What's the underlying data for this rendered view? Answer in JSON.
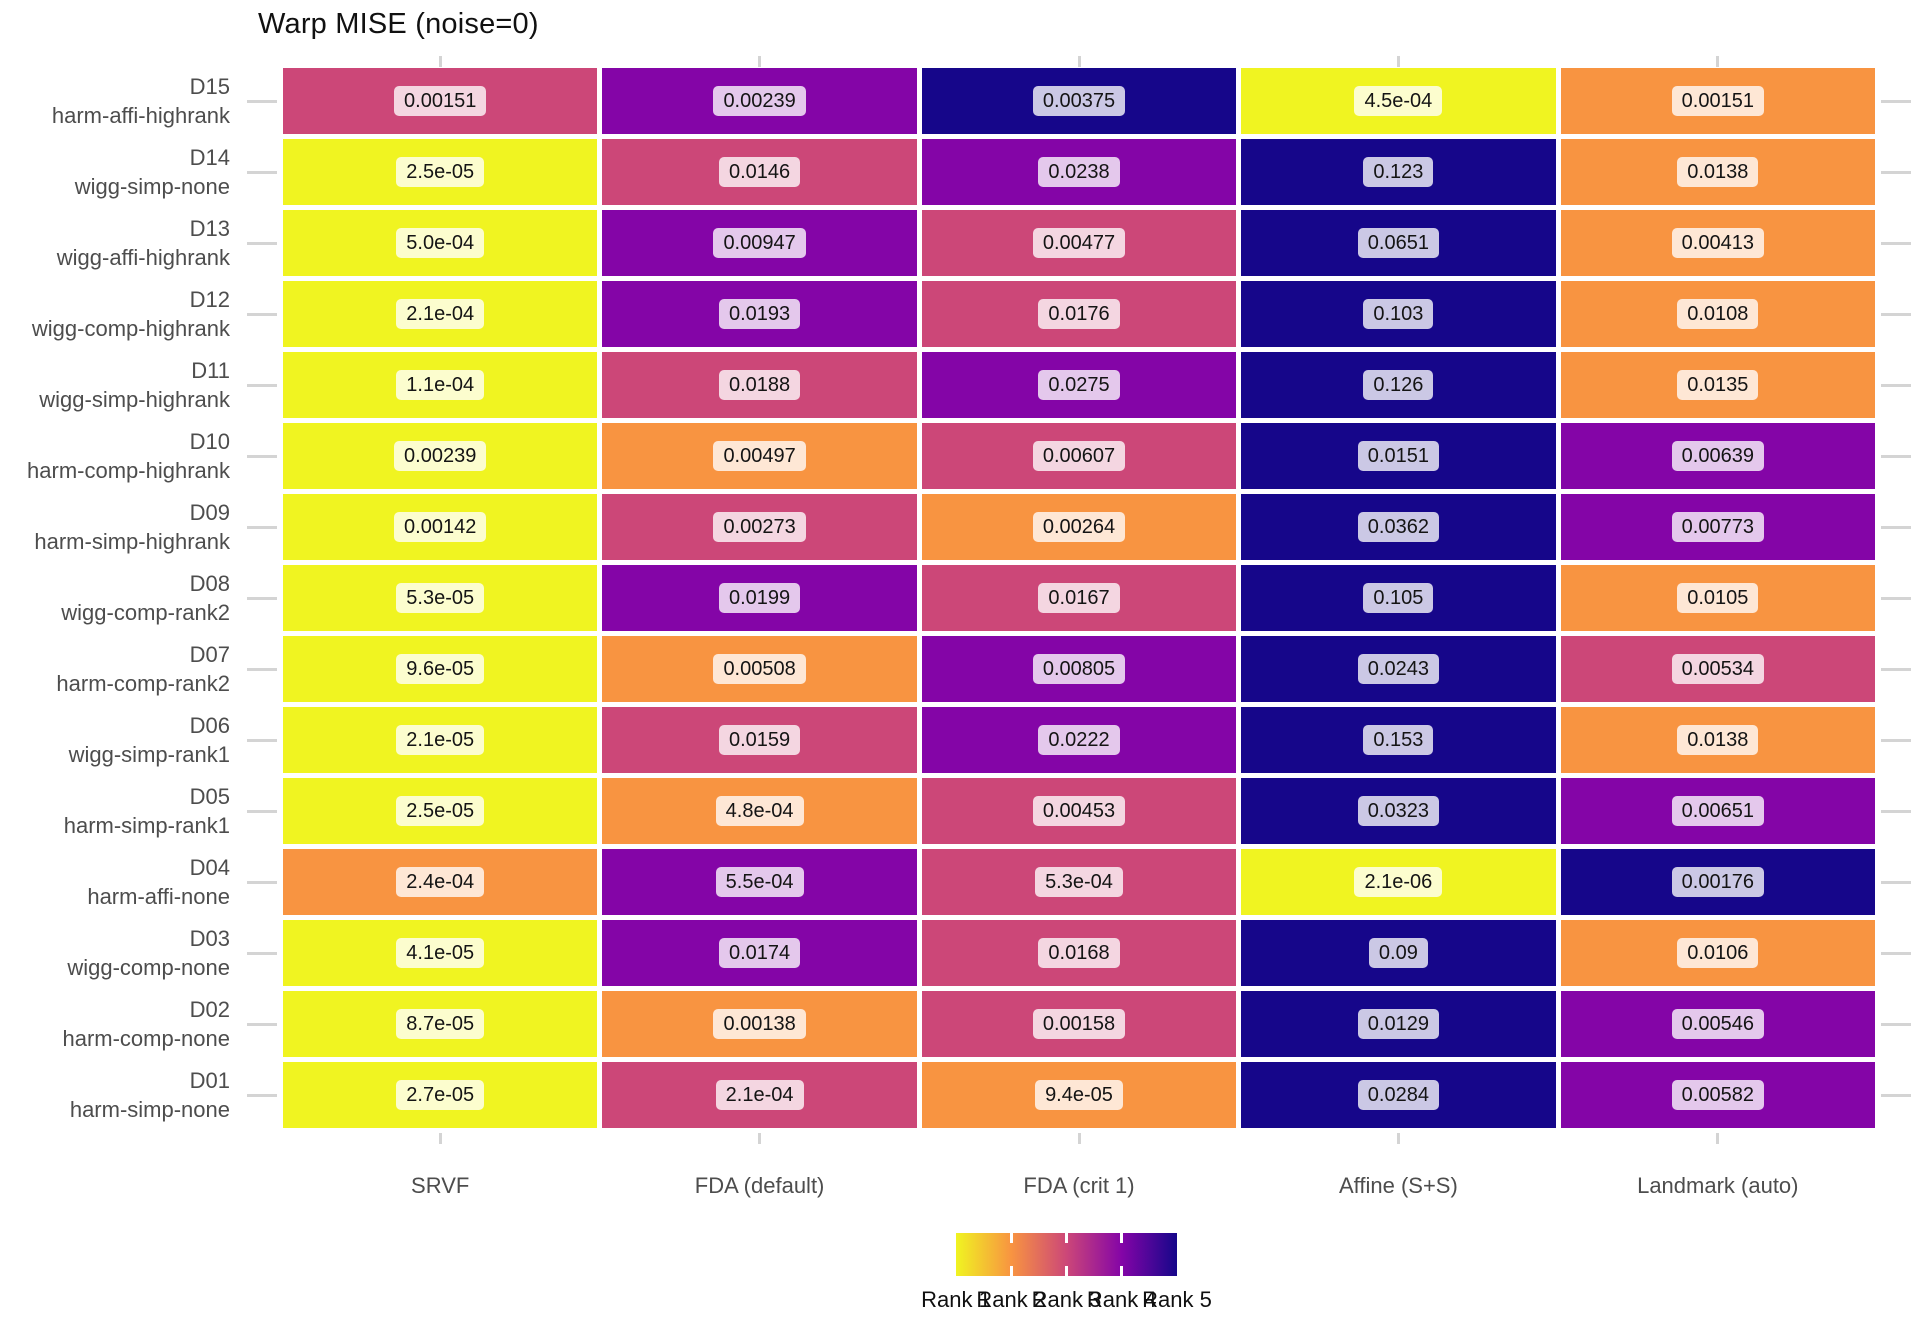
{
  "title": "Warp MISE (noise=0)",
  "columns": [
    "SRVF",
    "FDA (default)",
    "FDA (crit 1)",
    "Affine (S+S)",
    "Landmark (auto)"
  ],
  "legend": {
    "labels": [
      "Rank 1",
      "Rank 2",
      "Rank 3",
      "Rank 4",
      "Rank 5"
    ]
  },
  "rank_colors": {
    "1": "#F0F421",
    "2": "#F89441",
    "3": "#CC4778",
    "4": "#8405A7",
    "5": "#16068A"
  },
  "chart_data": {
    "type": "heatmap",
    "title": "Warp MISE (noise=0)",
    "x_categories": [
      "SRVF",
      "FDA (default)",
      "FDA (crit 1)",
      "Affine (S+S)",
      "Landmark (auto)"
    ],
    "y_categories_top_to_bottom": [
      "D15 harm-affi-highrank",
      "D14 wigg-simp-none",
      "D13 wigg-affi-highrank",
      "D12 wigg-comp-highrank",
      "D11 wigg-simp-highrank",
      "D10 harm-comp-highrank",
      "D09 harm-simp-highrank",
      "D08 wigg-comp-rank2",
      "D07 harm-comp-rank2",
      "D06 wigg-simp-rank1",
      "D05 harm-simp-rank1",
      "D04 harm-affi-none",
      "D03 wigg-comp-none",
      "D02 harm-comp-none",
      "D01 harm-simp-none"
    ],
    "fill_variable": "rank",
    "fill_scale": "plasma reversed, Rank 1 = yellow to Rank 5 = dark blue",
    "legend_position": "bottom",
    "rows": [
      {
        "id": "D15",
        "dataset": "harm-affi-highrank",
        "labels": [
          "0.00151",
          "0.00239",
          "0.00375",
          "4.5e-04",
          "0.00151"
        ],
        "values": [
          0.00151,
          0.00239,
          0.00375,
          0.00045,
          0.00151
        ],
        "ranks": [
          3,
          4,
          5,
          1,
          2
        ]
      },
      {
        "id": "D14",
        "dataset": "wigg-simp-none",
        "labels": [
          "2.5e-05",
          "0.0146",
          "0.0238",
          "0.123",
          "0.0138"
        ],
        "values": [
          2.5e-05,
          0.0146,
          0.0238,
          0.123,
          0.0138
        ],
        "ranks": [
          1,
          3,
          4,
          5,
          2
        ]
      },
      {
        "id": "D13",
        "dataset": "wigg-affi-highrank",
        "labels": [
          "5.0e-04",
          "0.00947",
          "0.00477",
          "0.0651",
          "0.00413"
        ],
        "values": [
          0.0005,
          0.00947,
          0.00477,
          0.0651,
          0.00413
        ],
        "ranks": [
          1,
          4,
          3,
          5,
          2
        ]
      },
      {
        "id": "D12",
        "dataset": "wigg-comp-highrank",
        "labels": [
          "2.1e-04",
          "0.0193",
          "0.0176",
          "0.103",
          "0.0108"
        ],
        "values": [
          0.00021,
          0.0193,
          0.0176,
          0.103,
          0.0108
        ],
        "ranks": [
          1,
          4,
          3,
          5,
          2
        ]
      },
      {
        "id": "D11",
        "dataset": "wigg-simp-highrank",
        "labels": [
          "1.1e-04",
          "0.0188",
          "0.0275",
          "0.126",
          "0.0135"
        ],
        "values": [
          0.00011,
          0.0188,
          0.0275,
          0.126,
          0.0135
        ],
        "ranks": [
          1,
          3,
          4,
          5,
          2
        ]
      },
      {
        "id": "D10",
        "dataset": "harm-comp-highrank",
        "labels": [
          "0.00239",
          "0.00497",
          "0.00607",
          "0.0151",
          "0.00639"
        ],
        "values": [
          0.00239,
          0.00497,
          0.00607,
          0.0151,
          0.00639
        ],
        "ranks": [
          1,
          2,
          3,
          5,
          4
        ]
      },
      {
        "id": "D09",
        "dataset": "harm-simp-highrank",
        "labels": [
          "0.00142",
          "0.00273",
          "0.00264",
          "0.0362",
          "0.00773"
        ],
        "values": [
          0.00142,
          0.00273,
          0.00264,
          0.0362,
          0.00773
        ],
        "ranks": [
          1,
          3,
          2,
          5,
          4
        ]
      },
      {
        "id": "D08",
        "dataset": "wigg-comp-rank2",
        "labels": [
          "5.3e-05",
          "0.0199",
          "0.0167",
          "0.105",
          "0.0105"
        ],
        "values": [
          5.3e-05,
          0.0199,
          0.0167,
          0.105,
          0.0105
        ],
        "ranks": [
          1,
          4,
          3,
          5,
          2
        ]
      },
      {
        "id": "D07",
        "dataset": "harm-comp-rank2",
        "labels": [
          "9.6e-05",
          "0.00508",
          "0.00805",
          "0.0243",
          "0.00534"
        ],
        "values": [
          9.6e-05,
          0.00508,
          0.00805,
          0.0243,
          0.00534
        ],
        "ranks": [
          1,
          2,
          4,
          5,
          3
        ]
      },
      {
        "id": "D06",
        "dataset": "wigg-simp-rank1",
        "labels": [
          "2.1e-05",
          "0.0159",
          "0.0222",
          "0.153",
          "0.0138"
        ],
        "values": [
          2.1e-05,
          0.0159,
          0.0222,
          0.153,
          0.0138
        ],
        "ranks": [
          1,
          3,
          4,
          5,
          2
        ]
      },
      {
        "id": "D05",
        "dataset": "harm-simp-rank1",
        "labels": [
          "2.5e-05",
          "4.8e-04",
          "0.00453",
          "0.0323",
          "0.00651"
        ],
        "values": [
          2.5e-05,
          0.00048,
          0.00453,
          0.0323,
          0.00651
        ],
        "ranks": [
          1,
          2,
          3,
          5,
          4
        ]
      },
      {
        "id": "D04",
        "dataset": "harm-affi-none",
        "labels": [
          "2.4e-04",
          "5.5e-04",
          "5.3e-04",
          "2.1e-06",
          "0.00176"
        ],
        "values": [
          0.00024,
          0.00055,
          0.00053,
          2.1e-06,
          0.00176
        ],
        "ranks": [
          2,
          4,
          3,
          1,
          5
        ]
      },
      {
        "id": "D03",
        "dataset": "wigg-comp-none",
        "labels": [
          "4.1e-05",
          "0.0174",
          "0.0168",
          "0.09",
          "0.0106"
        ],
        "values": [
          4.1e-05,
          0.0174,
          0.0168,
          0.09,
          0.0106
        ],
        "ranks": [
          1,
          4,
          3,
          5,
          2
        ]
      },
      {
        "id": "D02",
        "dataset": "harm-comp-none",
        "labels": [
          "8.7e-05",
          "0.00138",
          "0.00158",
          "0.0129",
          "0.00546"
        ],
        "values": [
          8.7e-05,
          0.00138,
          0.00158,
          0.0129,
          0.00546
        ],
        "ranks": [
          1,
          2,
          3,
          5,
          4
        ]
      },
      {
        "id": "D01",
        "dataset": "harm-simp-none",
        "labels": [
          "2.7e-05",
          "2.1e-04",
          "9.4e-05",
          "0.0284",
          "0.00582"
        ],
        "values": [
          2.7e-05,
          0.00021,
          9.4e-05,
          0.0284,
          0.00582
        ],
        "ranks": [
          1,
          3,
          2,
          5,
          4
        ]
      }
    ]
  }
}
